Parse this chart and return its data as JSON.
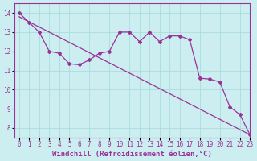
{
  "xlabel": "Windchill (Refroidissement éolien,°C)",
  "background_color": "#cceef0",
  "grid_color": "#aadddd",
  "line_color": "#993399",
  "xlim": [
    -0.5,
    23
  ],
  "ylim": [
    7.5,
    14.5
  ],
  "yticks": [
    8,
    9,
    10,
    11,
    12,
    13,
    14
  ],
  "xticks": [
    0,
    1,
    2,
    3,
    4,
    5,
    6,
    7,
    8,
    9,
    10,
    11,
    12,
    13,
    14,
    15,
    16,
    17,
    18,
    19,
    20,
    21,
    22,
    23
  ],
  "line1_x": [
    0,
    1,
    2,
    3,
    4,
    5,
    6,
    7,
    8,
    9,
    10,
    11,
    12,
    13,
    14,
    15,
    16,
    17,
    18,
    19,
    20,
    21,
    22,
    23
  ],
  "line1_y": [
    14.0,
    13.5,
    13.0,
    12.0,
    11.9,
    11.35,
    11.3,
    11.55,
    11.9,
    12.0,
    13.0,
    13.0,
    12.5,
    13.0,
    12.5,
    12.8,
    12.8,
    12.6,
    10.6,
    10.55,
    10.4,
    9.1,
    8.7,
    7.65
  ],
  "line2_x": [
    0,
    23
  ],
  "line2_y": [
    13.8,
    7.65
  ],
  "tick_fontsize": 5.5,
  "label_fontsize": 6.5
}
